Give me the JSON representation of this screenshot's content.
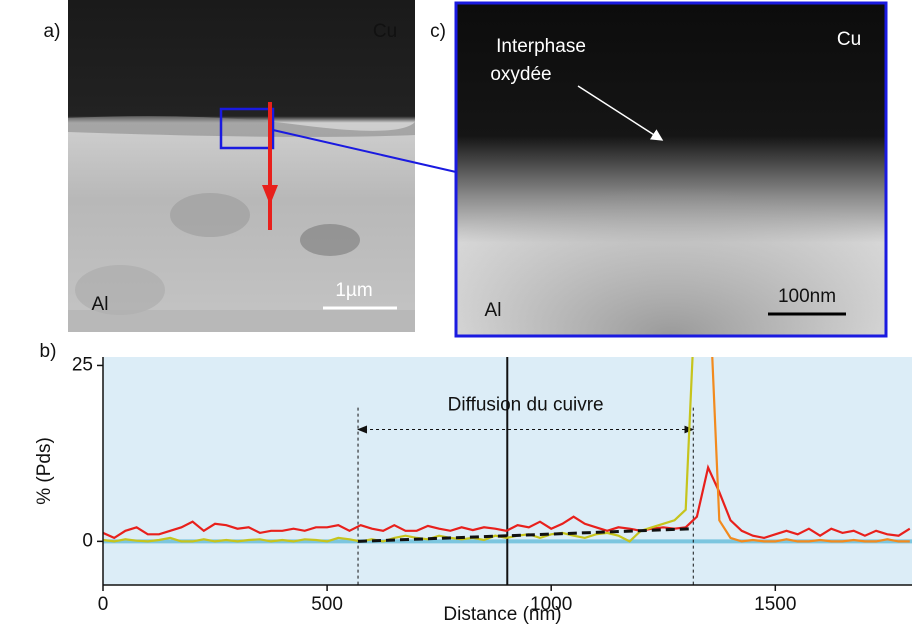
{
  "panel_a": {
    "label": "a)",
    "top_label": "Cu",
    "bottom_label": "Al",
    "scale": "1µm"
  },
  "panel_c": {
    "label": "c)",
    "top_label": "Cu",
    "bottom_label": "Al",
    "scale": "100nm",
    "annotation": [
      "Interphase",
      "oxydée"
    ]
  },
  "panel_b": {
    "label": "b)"
  },
  "chart_data": {
    "type": "line",
    "x_label": "Distance (nm)",
    "y_label": "% (Pds)",
    "xlim": [
      0,
      1805
    ],
    "ylim": [
      -6.2,
      26.2
    ],
    "xticks": [
      0,
      500,
      1000,
      1500
    ],
    "yticks": [
      0,
      25
    ],
    "background": "#dcedf7",
    "zero_line_color": "#7cc6df",
    "marker_x": 902,
    "annotation": {
      "text": "Diffusion du cuivre",
      "x": [
        569,
        1317
      ]
    },
    "x": [
      0,
      25,
      50,
      75,
      100,
      125,
      150,
      175,
      200,
      225,
      250,
      275,
      300,
      325,
      350,
      375,
      400,
      425,
      450,
      475,
      500,
      525,
      550,
      575,
      600,
      625,
      650,
      675,
      700,
      725,
      750,
      775,
      800,
      825,
      850,
      875,
      900,
      925,
      950,
      975,
      1000,
      1025,
      1050,
      1075,
      1100,
      1125,
      1150,
      1175,
      1200,
      1225,
      1250,
      1275,
      1300,
      1325,
      1350,
      1375,
      1400,
      1425,
      1450,
      1475,
      1500,
      1525,
      1550,
      1575,
      1600,
      1625,
      1650,
      1675,
      1700,
      1725,
      1750,
      1775,
      1800
    ],
    "series": [
      {
        "color": "#e8201c",
        "values": [
          1.2,
          0.5,
          1.5,
          2,
          1,
          1,
          1.5,
          2,
          2.8,
          1.5,
          2.5,
          2.3,
          1.8,
          2,
          1.2,
          1.5,
          1.5,
          1.8,
          1.5,
          2,
          2,
          2.3,
          1.5,
          2.3,
          1.8,
          1.5,
          2.3,
          1.5,
          1.5,
          2.2,
          1.8,
          1.5,
          2,
          1.6,
          2,
          1.8,
          1.5,
          2.3,
          2,
          2.8,
          1.8,
          2.5,
          3.5,
          2.5,
          2,
          1.5,
          2,
          1.8,
          1.5,
          1.8,
          2,
          1.8,
          2,
          3.5,
          10.5,
          7,
          3,
          1.5,
          0.8,
          0.5,
          1,
          1.5,
          1,
          1.8,
          0.8,
          1.8,
          1.2,
          1.5,
          0.8,
          1.5,
          1,
          0.8,
          1.8
        ]
      },
      {
        "color": "#c6c41c",
        "values": [
          0.2,
          0,
          0.3,
          0.1,
          0,
          0.2,
          0.5,
          0,
          0,
          0.3,
          0,
          0.2,
          0,
          0.2,
          0.3,
          0,
          0.2,
          0,
          0.3,
          0.2,
          0,
          0.5,
          0.3,
          0,
          0.3,
          0,
          0.5,
          0.8,
          0.5,
          0.3,
          0.8,
          0.5,
          0.3,
          0.5,
          0.2,
          0.8,
          0.5,
          0.8,
          1,
          0.5,
          1,
          1.2,
          0.8,
          0.5,
          1,
          1.2,
          0.8,
          0,
          1.5,
          2,
          2.5,
          3,
          4.5,
          40,
          null,
          null,
          null,
          null,
          null,
          null,
          null,
          null,
          null,
          null,
          null,
          null,
          null,
          null,
          null,
          null,
          null,
          null,
          null
        ]
      },
      {
        "color": "#f28a1e",
        "values": [
          null,
          null,
          null,
          null,
          null,
          null,
          null,
          null,
          null,
          null,
          null,
          null,
          null,
          null,
          null,
          null,
          null,
          null,
          null,
          null,
          null,
          null,
          null,
          null,
          null,
          null,
          null,
          null,
          null,
          null,
          null,
          null,
          null,
          null,
          null,
          null,
          null,
          null,
          null,
          null,
          null,
          null,
          null,
          null,
          null,
          null,
          null,
          null,
          null,
          null,
          null,
          null,
          null,
          null,
          40,
          3,
          0.5,
          0,
          0.2,
          0,
          0,
          0.3,
          0,
          0,
          0.2,
          0,
          0,
          0.2,
          0,
          0,
          0.3,
          0,
          0
        ]
      },
      {
        "color": "#111111",
        "dashed": true,
        "x": [
          569,
          1317
        ],
        "values": [
          0,
          1.8
        ]
      }
    ]
  }
}
